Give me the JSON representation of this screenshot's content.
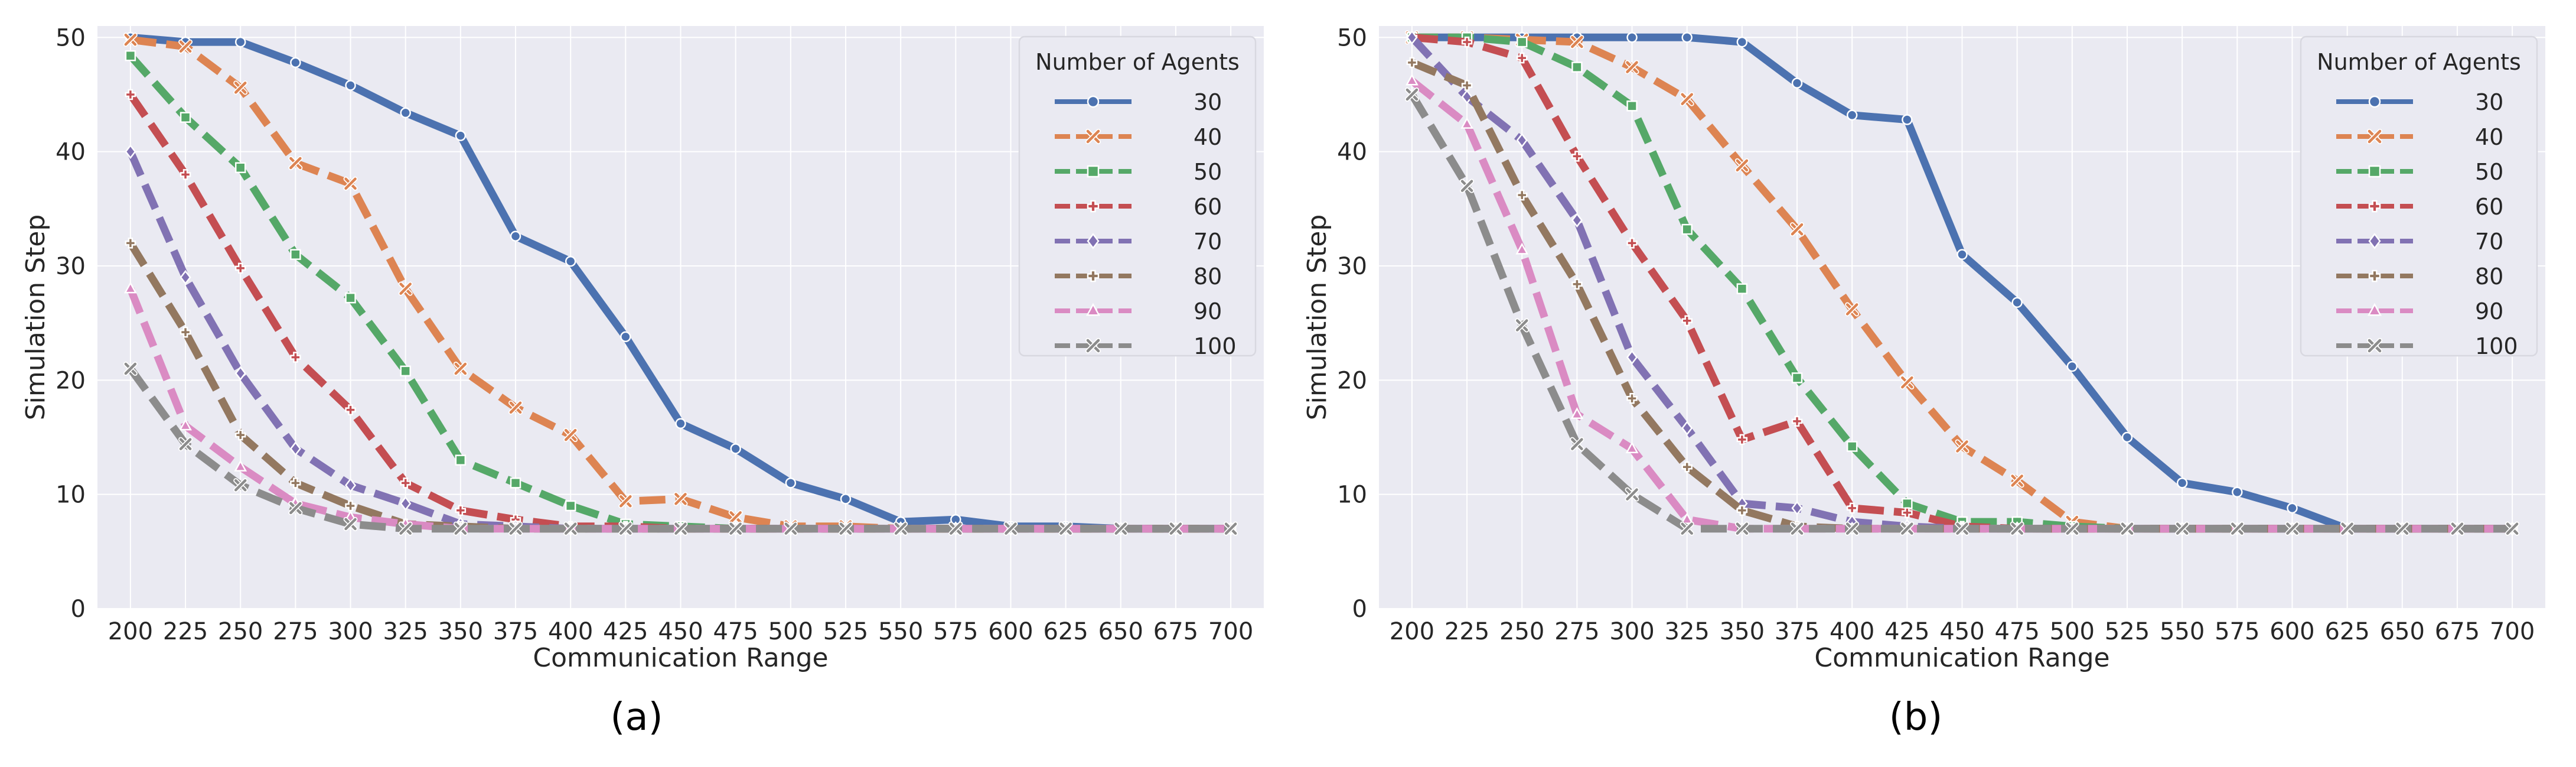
{
  "chart_data": [
    {
      "type": "line",
      "title": "",
      "caption": "(a)",
      "xlabel": "Communication Range",
      "ylabel": "Simulation Step",
      "x": [
        200,
        225,
        250,
        275,
        300,
        325,
        350,
        375,
        400,
        425,
        450,
        475,
        500,
        525,
        550,
        575,
        600,
        625,
        650,
        675,
        700
      ],
      "xticks": [
        "200",
        "225",
        "250",
        "275",
        "300",
        "325",
        "350",
        "375",
        "400",
        "425",
        "450",
        "475",
        "500",
        "525",
        "550",
        "575",
        "600",
        "625",
        "650",
        "675",
        "700"
      ],
      "yticks": [
        "0",
        "10",
        "20",
        "30",
        "40",
        "50"
      ],
      "ylim": [
        0,
        51
      ],
      "grid": true,
      "legend": {
        "title": "Number of Agents",
        "placement": "top-right"
      },
      "series": [
        {
          "name": "30",
          "color": "#4c72b0",
          "dash": "solid",
          "marker": "circle",
          "values": [
            50,
            49.6,
            49.6,
            47.8,
            45.8,
            43.4,
            41.4,
            32.6,
            30.4,
            23.8,
            16.2,
            14,
            11,
            9.6,
            7.6,
            7.8,
            7.2,
            7.2,
            7,
            7,
            7
          ]
        },
        {
          "name": "40",
          "color": "#dd8452",
          "dash": "dashed",
          "marker": "x",
          "values": [
            49.8,
            49.2,
            45.6,
            39,
            37.2,
            28,
            21,
            17.6,
            15.2,
            9.4,
            9.6,
            8,
            7.2,
            7.2,
            7,
            7,
            7,
            7,
            7,
            7,
            7
          ]
        },
        {
          "name": "50",
          "color": "#55a868",
          "dash": "dashed",
          "marker": "square",
          "values": [
            48.4,
            43,
            38.6,
            31,
            27.2,
            20.8,
            13,
            11,
            9,
            7.4,
            7.2,
            7,
            7,
            7,
            7,
            7,
            7,
            7,
            7,
            7,
            7
          ]
        },
        {
          "name": "60",
          "color": "#c44e52",
          "dash": "dashed",
          "marker": "plus",
          "values": [
            45,
            38,
            29.8,
            22,
            17.4,
            11,
            8.6,
            7.8,
            7.2,
            7.2,
            7,
            7,
            7,
            7,
            7,
            7,
            7,
            7,
            7,
            7,
            7
          ]
        },
        {
          "name": "70",
          "color": "#8172b3",
          "dash": "dashed",
          "marker": "diamond",
          "values": [
            40,
            29,
            20.6,
            14,
            10.8,
            9.2,
            7.4,
            7.2,
            7,
            7,
            7,
            7,
            7,
            7,
            7,
            7,
            7,
            7,
            7,
            7,
            7
          ]
        },
        {
          "name": "80",
          "color": "#937860",
          "dash": "dashed",
          "marker": "plus",
          "values": [
            32,
            24.2,
            15.2,
            11,
            9,
            7.4,
            7.2,
            7,
            7,
            7,
            7,
            7,
            7,
            7,
            7,
            7,
            7,
            7,
            7,
            7,
            7
          ]
        },
        {
          "name": "90",
          "color": "#da8bc3",
          "dash": "dashed",
          "marker": "triangle",
          "values": [
            28,
            16,
            12.4,
            9.2,
            8,
            7.4,
            7,
            7,
            7,
            7,
            7,
            7,
            7,
            7,
            7,
            7,
            7,
            7,
            7,
            7,
            7
          ]
        },
        {
          "name": "100",
          "color": "#8c8c8c",
          "dash": "dashed",
          "marker": "x",
          "values": [
            21,
            14.4,
            10.8,
            8.8,
            7.4,
            7,
            7,
            7,
            7,
            7,
            7,
            7,
            7,
            7,
            7,
            7,
            7,
            7,
            7,
            7,
            7
          ]
        }
      ]
    },
    {
      "type": "line",
      "title": "",
      "caption": "(b)",
      "xlabel": "Communication Range",
      "ylabel": "Simulation Step",
      "x": [
        200,
        225,
        250,
        275,
        300,
        325,
        350,
        375,
        400,
        425,
        450,
        475,
        500,
        525,
        550,
        575,
        600,
        625,
        650,
        675,
        700
      ],
      "xticks": [
        "200",
        "225",
        "250",
        "275",
        "300",
        "325",
        "350",
        "375",
        "400",
        "425",
        "450",
        "475",
        "500",
        "525",
        "550",
        "575",
        "600",
        "625",
        "650",
        "675",
        "700"
      ],
      "yticks": [
        "0",
        "10",
        "20",
        "30",
        "40",
        "50"
      ],
      "ylim": [
        0,
        51
      ],
      "grid": true,
      "legend": {
        "title": "Number of Agents",
        "placement": "top-right"
      },
      "series": [
        {
          "name": "30",
          "color": "#4c72b0",
          "dash": "solid",
          "marker": "circle",
          "values": [
            50,
            50,
            50,
            50,
            50,
            50,
            49.6,
            46,
            43.2,
            42.8,
            31,
            26.8,
            21.2,
            15,
            11,
            10.2,
            8.8,
            7,
            7,
            7,
            7
          ]
        },
        {
          "name": "40",
          "color": "#dd8452",
          "dash": "dashed",
          "marker": "x",
          "values": [
            50,
            50,
            49.8,
            49.6,
            47.4,
            44.6,
            38.8,
            33.2,
            26.2,
            19.8,
            14.2,
            11.2,
            7.6,
            7,
            7,
            7,
            7,
            7,
            7,
            7,
            7
          ]
        },
        {
          "name": "50",
          "color": "#55a868",
          "dash": "dashed",
          "marker": "square",
          "values": [
            50,
            50,
            49.6,
            47.4,
            44,
            33.2,
            28,
            20.2,
            14.2,
            9.2,
            7.6,
            7.6,
            7.2,
            7,
            7,
            7,
            7,
            7,
            7,
            7,
            7
          ]
        },
        {
          "name": "60",
          "color": "#c44e52",
          "dash": "dashed",
          "marker": "plus",
          "values": [
            50,
            49.6,
            48.2,
            39.6,
            32,
            25.2,
            14.8,
            16.4,
            8.8,
            8.4,
            7.2,
            7,
            7,
            7,
            7,
            7,
            7,
            7,
            7,
            7,
            7
          ]
        },
        {
          "name": "70",
          "color": "#8172b3",
          "dash": "dashed",
          "marker": "diamond",
          "values": [
            50,
            44.8,
            41,
            34,
            22,
            15.8,
            9.2,
            8.8,
            7.6,
            7.2,
            7,
            7,
            7,
            7,
            7,
            7,
            7,
            7,
            7,
            7,
            7
          ]
        },
        {
          "name": "80",
          "color": "#937860",
          "dash": "dashed",
          "marker": "plus",
          "values": [
            47.8,
            45.8,
            36.2,
            28.4,
            18.4,
            12.4,
            8.6,
            7.2,
            7,
            7,
            7,
            7,
            7,
            7,
            7,
            7,
            7,
            7,
            7,
            7,
            7
          ]
        },
        {
          "name": "90",
          "color": "#da8bc3",
          "dash": "dashed",
          "marker": "triangle",
          "values": [
            46.2,
            42.4,
            31.4,
            17,
            14,
            7.8,
            7,
            7,
            7,
            7,
            7,
            7,
            7,
            7,
            7,
            7,
            7,
            7,
            7,
            7,
            7
          ]
        },
        {
          "name": "100",
          "color": "#8c8c8c",
          "dash": "dashed",
          "marker": "x",
          "values": [
            45,
            37,
            24.8,
            14.4,
            10,
            7,
            7,
            7,
            7,
            7,
            7,
            7,
            7,
            7,
            7,
            7,
            7,
            7,
            7,
            7,
            7
          ]
        }
      ]
    }
  ]
}
